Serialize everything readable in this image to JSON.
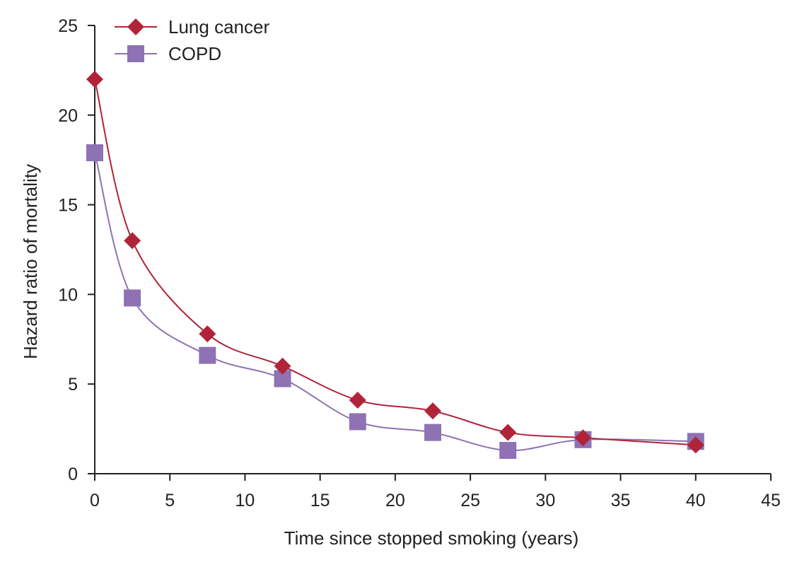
{
  "chart_data": {
    "type": "line",
    "title": "",
    "xlabel": "Time since stopped smoking (years)",
    "ylabel": "Hazard ratio of mortality",
    "xlim": [
      0,
      45
    ],
    "ylim": [
      0,
      25
    ],
    "x_ticks": [
      0,
      5,
      10,
      15,
      20,
      25,
      30,
      35,
      40,
      45
    ],
    "y_ticks": [
      0,
      5,
      10,
      15,
      20,
      25
    ],
    "grid": false,
    "legend_position": "top-left",
    "series": [
      {
        "name": "Lung cancer",
        "marker": "diamond",
        "color": "#b0243a",
        "x": [
          0,
          2.5,
          7.5,
          12.5,
          17.5,
          22.5,
          27.5,
          32.5,
          40
        ],
        "values": [
          22.0,
          13.0,
          7.8,
          6.0,
          4.1,
          3.5,
          2.3,
          2.0,
          1.6
        ]
      },
      {
        "name": "COPD",
        "marker": "square",
        "color": "#8e72b3",
        "x": [
          0,
          2.5,
          7.5,
          12.5,
          17.5,
          22.5,
          27.5,
          32.5,
          40
        ],
        "values": [
          17.9,
          9.8,
          6.6,
          5.3,
          2.9,
          2.3,
          1.3,
          1.9,
          1.8
        ]
      }
    ]
  }
}
